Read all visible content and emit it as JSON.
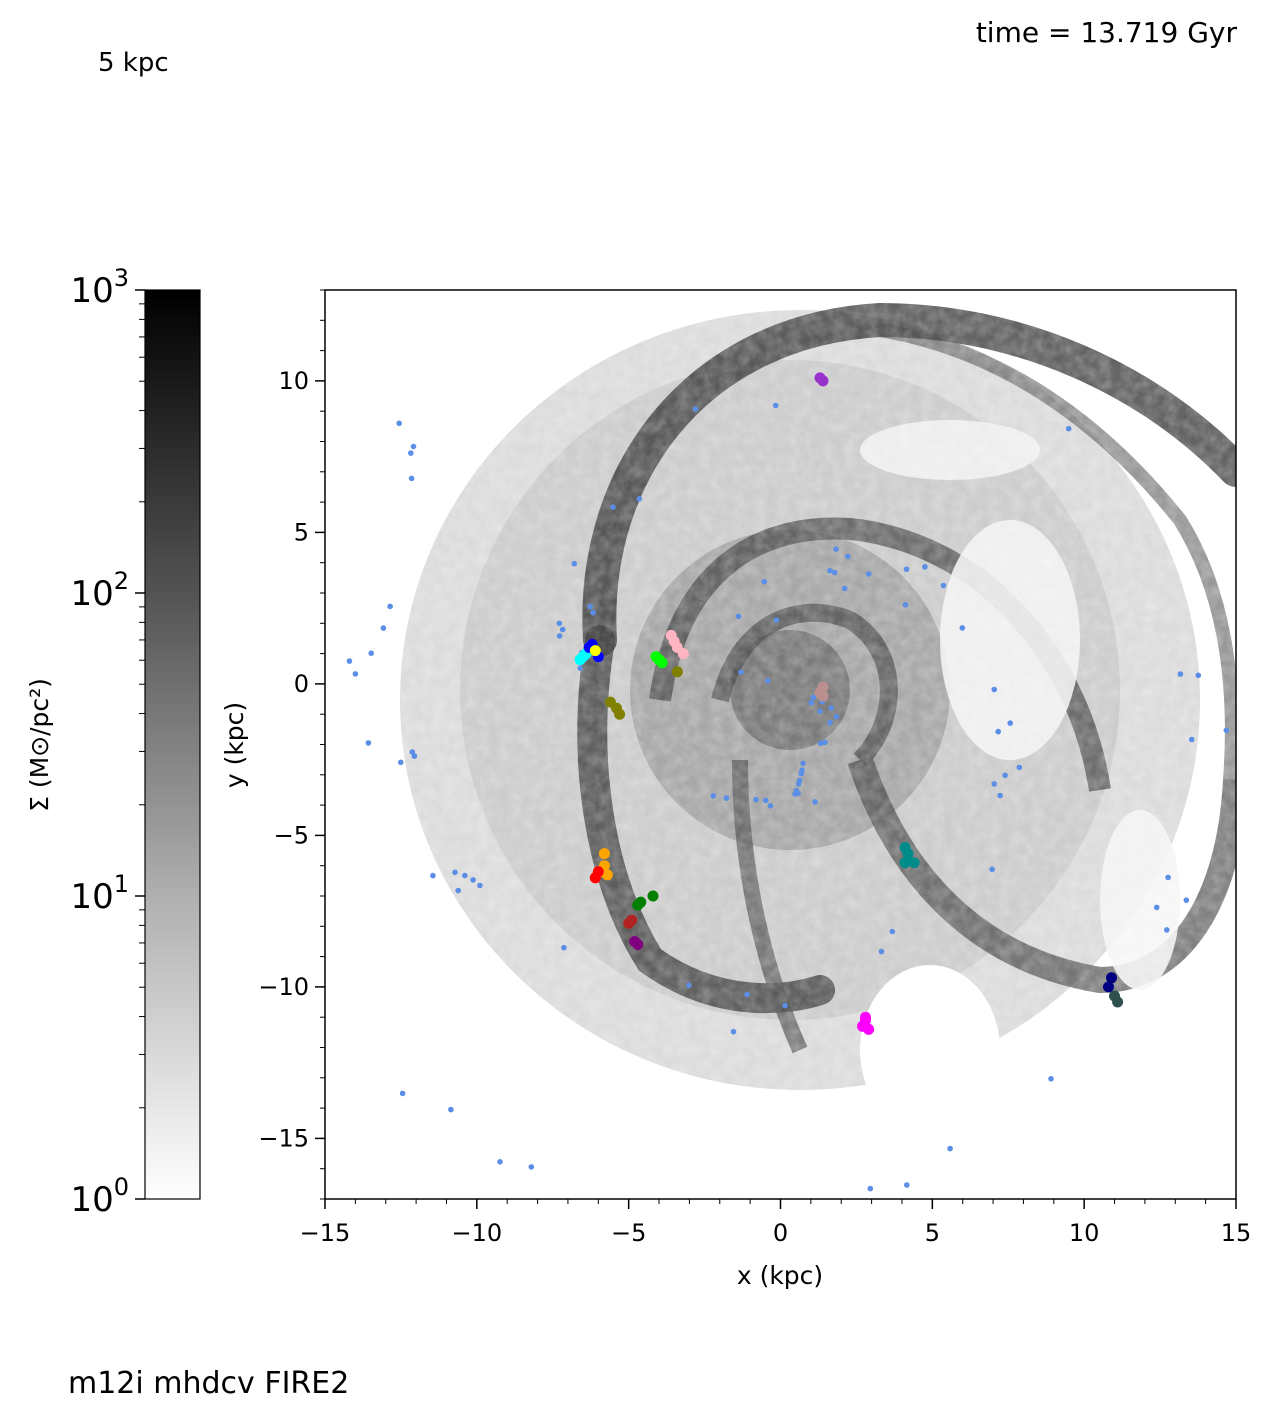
{
  "annotations": {
    "scale_label": "5 kpc",
    "time_label": "time = 13.719 Gyr",
    "sim_label": "m12i mhdcv FIRE2"
  },
  "colors": {
    "gas_dark": "#1a1a1a",
    "gas_light": "#bfbfbf",
    "star_particles": "#5b8ee6"
  },
  "chart_data": {
    "type": "scatter",
    "background": "gas surface density map (spiral galaxy, face-on)",
    "xlabel": "x (kpc)",
    "ylabel": "y (kpc)",
    "xlim": [
      -15,
      15
    ],
    "ylim": [
      -17,
      13
    ],
    "x_ticks": [
      -15,
      -10,
      -5,
      0,
      5,
      10,
      15
    ],
    "x_tick_labels": [
      "−15",
      "−10",
      "−5",
      "0",
      "5",
      "10",
      "15"
    ],
    "y_ticks": [
      -15,
      -10,
      -5,
      0,
      5,
      10
    ],
    "y_tick_labels": [
      "−15",
      "−10",
      "−5",
      "0",
      "5",
      "10"
    ],
    "colorbar": {
      "label": "Σ (M⊙/pc²)",
      "scale": "log",
      "range": [
        1,
        1000
      ],
      "ticks": [
        1,
        10,
        100,
        1000
      ],
      "tick_labels": [
        "10^0",
        "10^1",
        "10^2",
        "10^3"
      ]
    },
    "clusters": [
      {
        "color": "#00ffff",
        "points": [
          [
            -6.6,
            0.8
          ],
          [
            -6.5,
            0.9
          ],
          [
            -6.4,
            1.0
          ]
        ]
      },
      {
        "color": "#0000ff",
        "points": [
          [
            -6.3,
            1.2
          ],
          [
            -6.2,
            1.3
          ],
          [
            -6.0,
            0.9
          ]
        ]
      },
      {
        "color": "#ffff00",
        "points": [
          [
            -6.1,
            1.1
          ]
        ]
      },
      {
        "color": "#00ff00",
        "points": [
          [
            -4.1,
            0.9
          ],
          [
            -4.0,
            0.8
          ],
          [
            -3.9,
            0.7
          ]
        ]
      },
      {
        "color": "#ffb6c1",
        "points": [
          [
            -3.6,
            1.6
          ],
          [
            -3.4,
            1.2
          ],
          [
            -3.2,
            1.0
          ],
          [
            -3.5,
            1.4
          ]
        ]
      },
      {
        "color": "#808000",
        "points": [
          [
            -5.6,
            -0.6
          ],
          [
            -5.4,
            -0.8
          ],
          [
            -5.3,
            -1.0
          ],
          [
            -3.4,
            0.4
          ]
        ]
      },
      {
        "color": "#9932cc",
        "points": [
          [
            1.4,
            10.0
          ],
          [
            1.3,
            10.1
          ]
        ]
      },
      {
        "color": "#bc8f8f",
        "points": [
          [
            1.3,
            -0.3
          ],
          [
            1.4,
            -0.4
          ],
          [
            1.4,
            -0.1
          ]
        ]
      },
      {
        "color": "#ffa500",
        "points": [
          [
            -5.8,
            -5.6
          ],
          [
            -5.8,
            -6.0
          ],
          [
            -5.7,
            -6.3
          ],
          [
            -5.9,
            -6.2
          ]
        ]
      },
      {
        "color": "#ff0000",
        "points": [
          [
            -6.1,
            -6.4
          ],
          [
            -6.0,
            -6.2
          ]
        ]
      },
      {
        "color": "#008000",
        "points": [
          [
            -4.7,
            -7.3
          ],
          [
            -4.2,
            -7.0
          ],
          [
            -4.6,
            -7.2
          ]
        ]
      },
      {
        "color": "#b22222",
        "points": [
          [
            -5.0,
            -7.9
          ],
          [
            -4.9,
            -7.8
          ]
        ]
      },
      {
        "color": "#800080",
        "points": [
          [
            -4.7,
            -8.6
          ],
          [
            -4.8,
            -8.5
          ]
        ]
      },
      {
        "color": "#008b8b",
        "points": [
          [
            4.1,
            -5.4
          ],
          [
            4.2,
            -5.6
          ],
          [
            4.4,
            -5.9
          ],
          [
            4.1,
            -5.9
          ]
        ]
      },
      {
        "color": "#ff00ff",
        "points": [
          [
            2.8,
            -11.1
          ],
          [
            2.9,
            -11.4
          ],
          [
            2.7,
            -11.3
          ],
          [
            2.8,
            -11.0
          ]
        ]
      },
      {
        "color": "#000080",
        "points": [
          [
            10.8,
            -10.0
          ],
          [
            10.9,
            -9.7
          ]
        ]
      },
      {
        "color": "#2f4f4f",
        "points": [
          [
            11.1,
            -10.5
          ],
          [
            11.0,
            -10.3
          ]
        ]
      }
    ]
  }
}
